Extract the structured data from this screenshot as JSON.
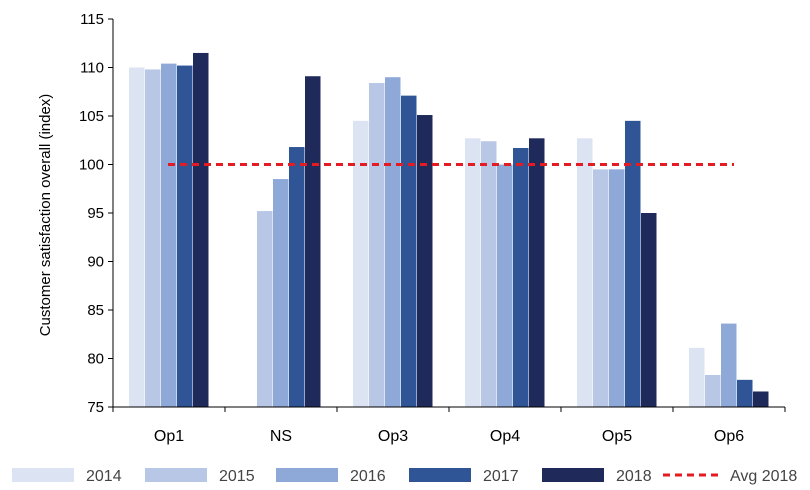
{
  "chart_data": {
    "type": "bar",
    "title": "",
    "xlabel": "",
    "ylabel": "Customer satisfaction overall (index)",
    "ylim": [
      75,
      115
    ],
    "yticks": [
      75,
      80,
      85,
      90,
      95,
      100,
      105,
      110,
      115
    ],
    "categories": [
      "Op1",
      "NS",
      "Op3",
      "Op4",
      "Op5",
      "Op6"
    ],
    "series": [
      {
        "name": "2014",
        "color": "#dce3f2",
        "values": [
          110.0,
          null,
          104.5,
          102.7,
          102.7,
          81.1
        ]
      },
      {
        "name": "2015",
        "color": "#b8c7e6",
        "values": [
          109.8,
          95.2,
          108.4,
          102.4,
          99.5,
          78.3
        ]
      },
      {
        "name": "2016",
        "color": "#8ea9d8",
        "values": [
          110.4,
          98.5,
          109.0,
          100.0,
          99.5,
          83.6
        ]
      },
      {
        "name": "2017",
        "color": "#2f5597",
        "values": [
          110.2,
          101.8,
          107.1,
          101.7,
          104.5,
          77.8
        ]
      },
      {
        "name": "2018",
        "color": "#1f2a5a",
        "values": [
          111.5,
          109.1,
          105.1,
          102.7,
          95.0,
          76.6
        ]
      }
    ],
    "reference_line": {
      "name": "Avg 2018",
      "value": 100,
      "color": "#e31b23",
      "style": "dashed"
    },
    "legend_position": "bottom",
    "grid": false
  }
}
